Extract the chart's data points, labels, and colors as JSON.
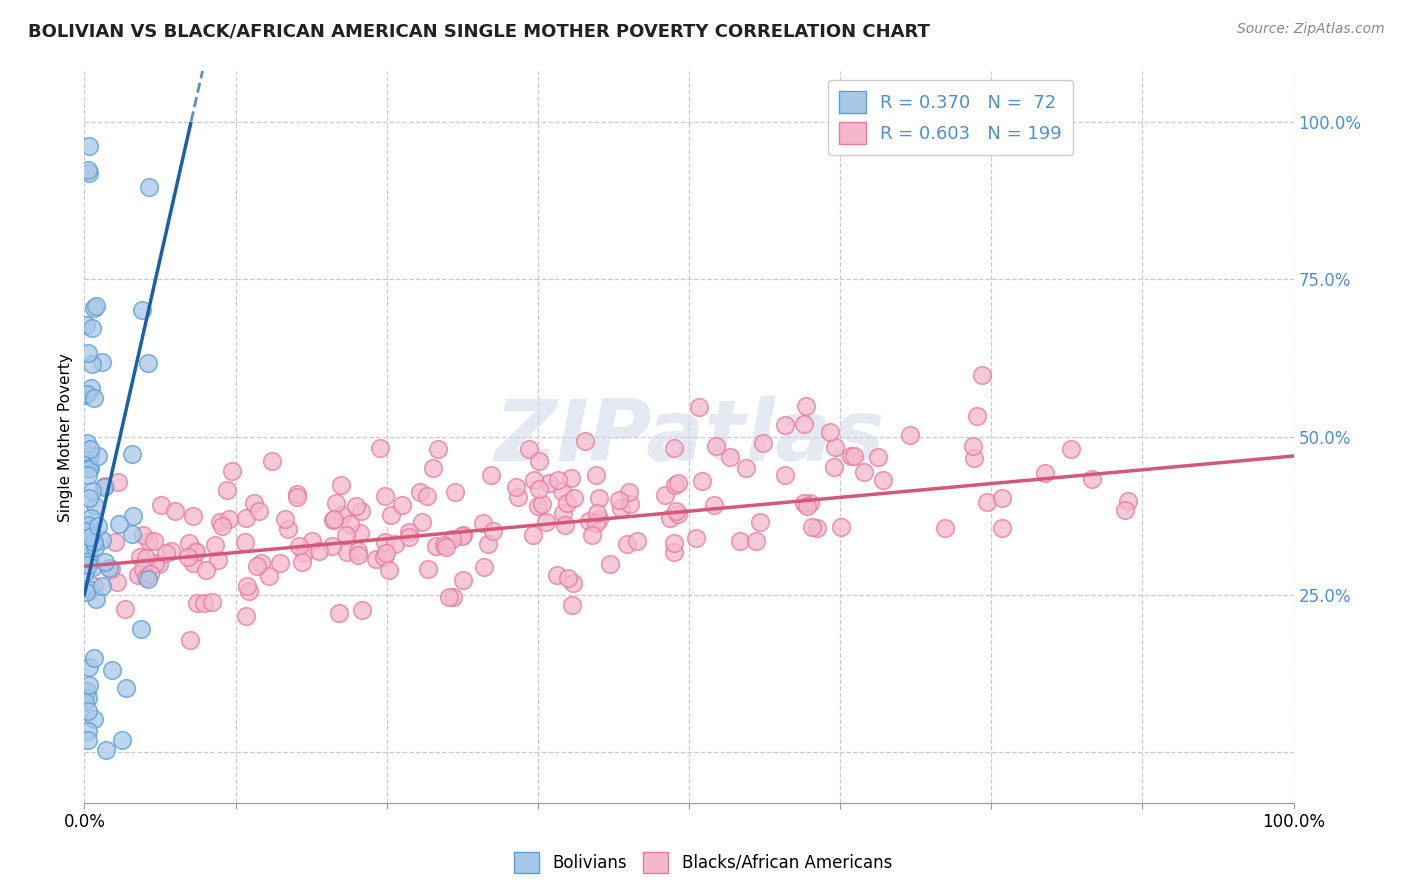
{
  "title": "BOLIVIAN VS BLACK/AFRICAN AMERICAN SINGLE MOTHER POVERTY CORRELATION CHART",
  "source": "Source: ZipAtlas.com",
  "ylabel": "Single Mother Poverty",
  "xlim": [
    0,
    1
  ],
  "ylim": [
    -0.08,
    1.08
  ],
  "ytick_labels_right": [
    "100.0%",
    "75.0%",
    "50.0%",
    "25.0%"
  ],
  "ytick_values_right": [
    1.0,
    0.75,
    0.5,
    0.25
  ],
  "ytick_all": [
    0.0,
    0.25,
    0.5,
    0.75,
    1.0
  ],
  "xtick_values_all": [
    0.0,
    0.125,
    0.25,
    0.375,
    0.5,
    0.625,
    0.75,
    0.875,
    1.0
  ],
  "xtick_label_values": [
    0.0,
    1.0
  ],
  "xtick_labels": [
    "0.0%",
    "100.0%"
  ],
  "bolivian_color": "#a8c8e8",
  "bolivian_edge": "#5a9fd4",
  "black_color": "#f4b8cc",
  "black_edge": "#e87aa0",
  "R_bolivian": 0.37,
  "N_bolivian": 72,
  "R_black": 0.603,
  "N_black": 199,
  "watermark": "ZIPatlas",
  "background_color": "#ffffff",
  "grid_color": "#c8c8d8",
  "trend_blue": "#1a5fa8",
  "trend_pink": "#d45878",
  "label_color": "#4a90d9",
  "title_fontsize": 13,
  "source_fontsize": 10,
  "tick_label_fontsize": 12,
  "ylabel_fontsize": 11
}
